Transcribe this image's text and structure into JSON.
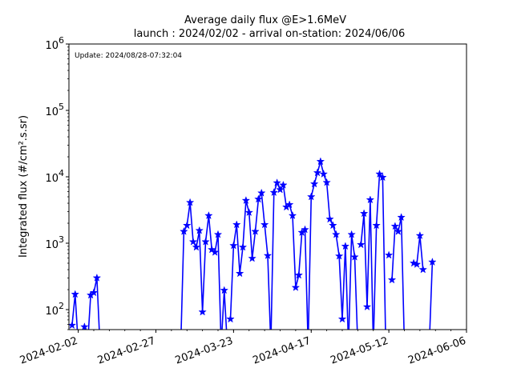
{
  "chart_data": {
    "type": "line",
    "title": "Average daily flux @E>1.6MeV",
    "subtitle": "launch : 2024/02/02 - arrival on-station: 2024/06/06",
    "ylabel": "Integrated flux (#/cm².s.sr)",
    "xlabel": "",
    "annotation": "Update: 2024/08/28-07:32:04",
    "x_ticks": [
      "2024-02-02",
      "2024-02-27",
      "2024-03-23",
      "2024-04-17",
      "2024-05-12",
      "2024-06-06"
    ],
    "y_scale": "log",
    "ylim": [
      50,
      1000000
    ],
    "xlim": [
      "2024-01-30",
      "2024-06-06"
    ],
    "y_ticks": [
      {
        "base": "10",
        "exp": "2",
        "value": 100
      },
      {
        "base": "10",
        "exp": "3",
        "value": 1000
      },
      {
        "base": "10",
        "exp": "4",
        "value": 10000
      },
      {
        "base": "10",
        "exp": "5",
        "value": 100000
      },
      {
        "base": "10",
        "exp": "6",
        "value": 1000000
      }
    ],
    "grid": false,
    "color": "#0000ff",
    "marker": "star",
    "segments": [
      [
        {
          "x": "2024-01-31",
          "y": 58
        },
        {
          "x": "2024-02-01",
          "y": 170
        },
        {
          "x": "2024-02-02",
          "y": 5
        }
      ],
      [
        {
          "x": "2024-02-04",
          "y": 55
        },
        {
          "x": "2024-02-05",
          "y": 5
        },
        {
          "x": "2024-02-06",
          "y": 165
        },
        {
          "x": "2024-02-07",
          "y": 180
        },
        {
          "x": "2024-02-08",
          "y": 300
        },
        {
          "x": "2024-02-09",
          "y": 5
        }
      ],
      [
        {
          "x": "2024-03-06",
          "y": 48
        },
        {
          "x": "2024-03-07",
          "y": 1500
        },
        {
          "x": "2024-03-08",
          "y": 1850
        },
        {
          "x": "2024-03-09",
          "y": 4100
        },
        {
          "x": "2024-03-10",
          "y": 1050
        },
        {
          "x": "2024-03-11",
          "y": 870
        },
        {
          "x": "2024-03-12",
          "y": 1550
        },
        {
          "x": "2024-03-13",
          "y": 92
        },
        {
          "x": "2024-03-14",
          "y": 1050
        },
        {
          "x": "2024-03-15",
          "y": 2600
        },
        {
          "x": "2024-03-16",
          "y": 800
        },
        {
          "x": "2024-03-17",
          "y": 730
        },
        {
          "x": "2024-03-18",
          "y": 1350
        },
        {
          "x": "2024-03-19",
          "y": 5
        }
      ],
      [
        {
          "x": "2024-03-19",
          "y": 5
        },
        {
          "x": "2024-03-20",
          "y": 195
        },
        {
          "x": "2024-03-21",
          "y": 5
        }
      ],
      [
        {
          "x": "2024-03-22",
          "y": 72
        },
        {
          "x": "2024-03-23",
          "y": 920
        },
        {
          "x": "2024-03-24",
          "y": 1900
        },
        {
          "x": "2024-03-25",
          "y": 350
        },
        {
          "x": "2024-03-26",
          "y": 870
        },
        {
          "x": "2024-03-27",
          "y": 4400
        },
        {
          "x": "2024-03-28",
          "y": 2900
        },
        {
          "x": "2024-03-29",
          "y": 590
        },
        {
          "x": "2024-03-30",
          "y": 1500
        },
        {
          "x": "2024-03-31",
          "y": 4600
        },
        {
          "x": "2024-04-01",
          "y": 5700
        },
        {
          "x": "2024-04-02",
          "y": 1900
        },
        {
          "x": "2024-04-03",
          "y": 650
        },
        {
          "x": "2024-04-04",
          "y": 5
        }
      ],
      [
        {
          "x": "2024-04-04",
          "y": 5
        },
        {
          "x": "2024-04-05",
          "y": 5800
        },
        {
          "x": "2024-04-06",
          "y": 8100
        },
        {
          "x": "2024-04-07",
          "y": 6400
        },
        {
          "x": "2024-04-08",
          "y": 7500
        },
        {
          "x": "2024-04-09",
          "y": 3500
        },
        {
          "x": "2024-04-10",
          "y": 3800
        },
        {
          "x": "2024-04-11",
          "y": 2600
        },
        {
          "x": "2024-04-12",
          "y": 215
        },
        {
          "x": "2024-04-13",
          "y": 330
        },
        {
          "x": "2024-04-14",
          "y": 1450
        },
        {
          "x": "2024-04-15",
          "y": 1600
        },
        {
          "x": "2024-04-16",
          "y": 5
        }
      ],
      [
        {
          "x": "2024-04-16",
          "y": 5
        },
        {
          "x": "2024-04-17",
          "y": 5000
        },
        {
          "x": "2024-04-18",
          "y": 7800
        },
        {
          "x": "2024-04-19",
          "y": 11500
        },
        {
          "x": "2024-04-20",
          "y": 17000
        },
        {
          "x": "2024-04-21",
          "y": 11000
        },
        {
          "x": "2024-04-22",
          "y": 8200
        },
        {
          "x": "2024-04-23",
          "y": 2300
        },
        {
          "x": "2024-04-24",
          "y": 1850
        },
        {
          "x": "2024-04-25",
          "y": 1350
        },
        {
          "x": "2024-04-26",
          "y": 640
        },
        {
          "x": "2024-04-27",
          "y": 72
        },
        {
          "x": "2024-04-28",
          "y": 900
        },
        {
          "x": "2024-04-29",
          "y": 5
        }
      ],
      [
        {
          "x": "2024-04-29",
          "y": 5
        },
        {
          "x": "2024-04-30",
          "y": 1350
        },
        {
          "x": "2024-05-01",
          "y": 620
        },
        {
          "x": "2024-05-02",
          "y": 5
        }
      ],
      [
        {
          "x": "2024-05-03",
          "y": 950
        },
        {
          "x": "2024-05-04",
          "y": 2800
        },
        {
          "x": "2024-05-05",
          "y": 110
        },
        {
          "x": "2024-05-06",
          "y": 4500
        },
        {
          "x": "2024-05-07",
          "y": 5
        }
      ],
      [
        {
          "x": "2024-05-07",
          "y": 5
        },
        {
          "x": "2024-05-08",
          "y": 1850
        },
        {
          "x": "2024-05-09",
          "y": 11000
        },
        {
          "x": "2024-05-10",
          "y": 9800
        },
        {
          "x": "2024-05-11",
          "y": 5
        }
      ],
      [
        {
          "x": "2024-05-12",
          "y": 660
        }
      ],
      [
        {
          "x": "2024-05-13",
          "y": 280
        },
        {
          "x": "2024-05-14",
          "y": 1800
        },
        {
          "x": "2024-05-15",
          "y": 1500
        },
        {
          "x": "2024-05-16",
          "y": 2450
        },
        {
          "x": "2024-05-17",
          "y": 5
        }
      ],
      [
        {
          "x": "2024-05-20",
          "y": 500
        },
        {
          "x": "2024-05-21",
          "y": 480
        },
        {
          "x": "2024-05-22",
          "y": 1300
        },
        {
          "x": "2024-05-23",
          "y": 400
        }
      ],
      [
        {
          "x": "2024-05-25",
          "y": 5
        },
        {
          "x": "2024-05-26",
          "y": 520
        }
      ]
    ]
  }
}
